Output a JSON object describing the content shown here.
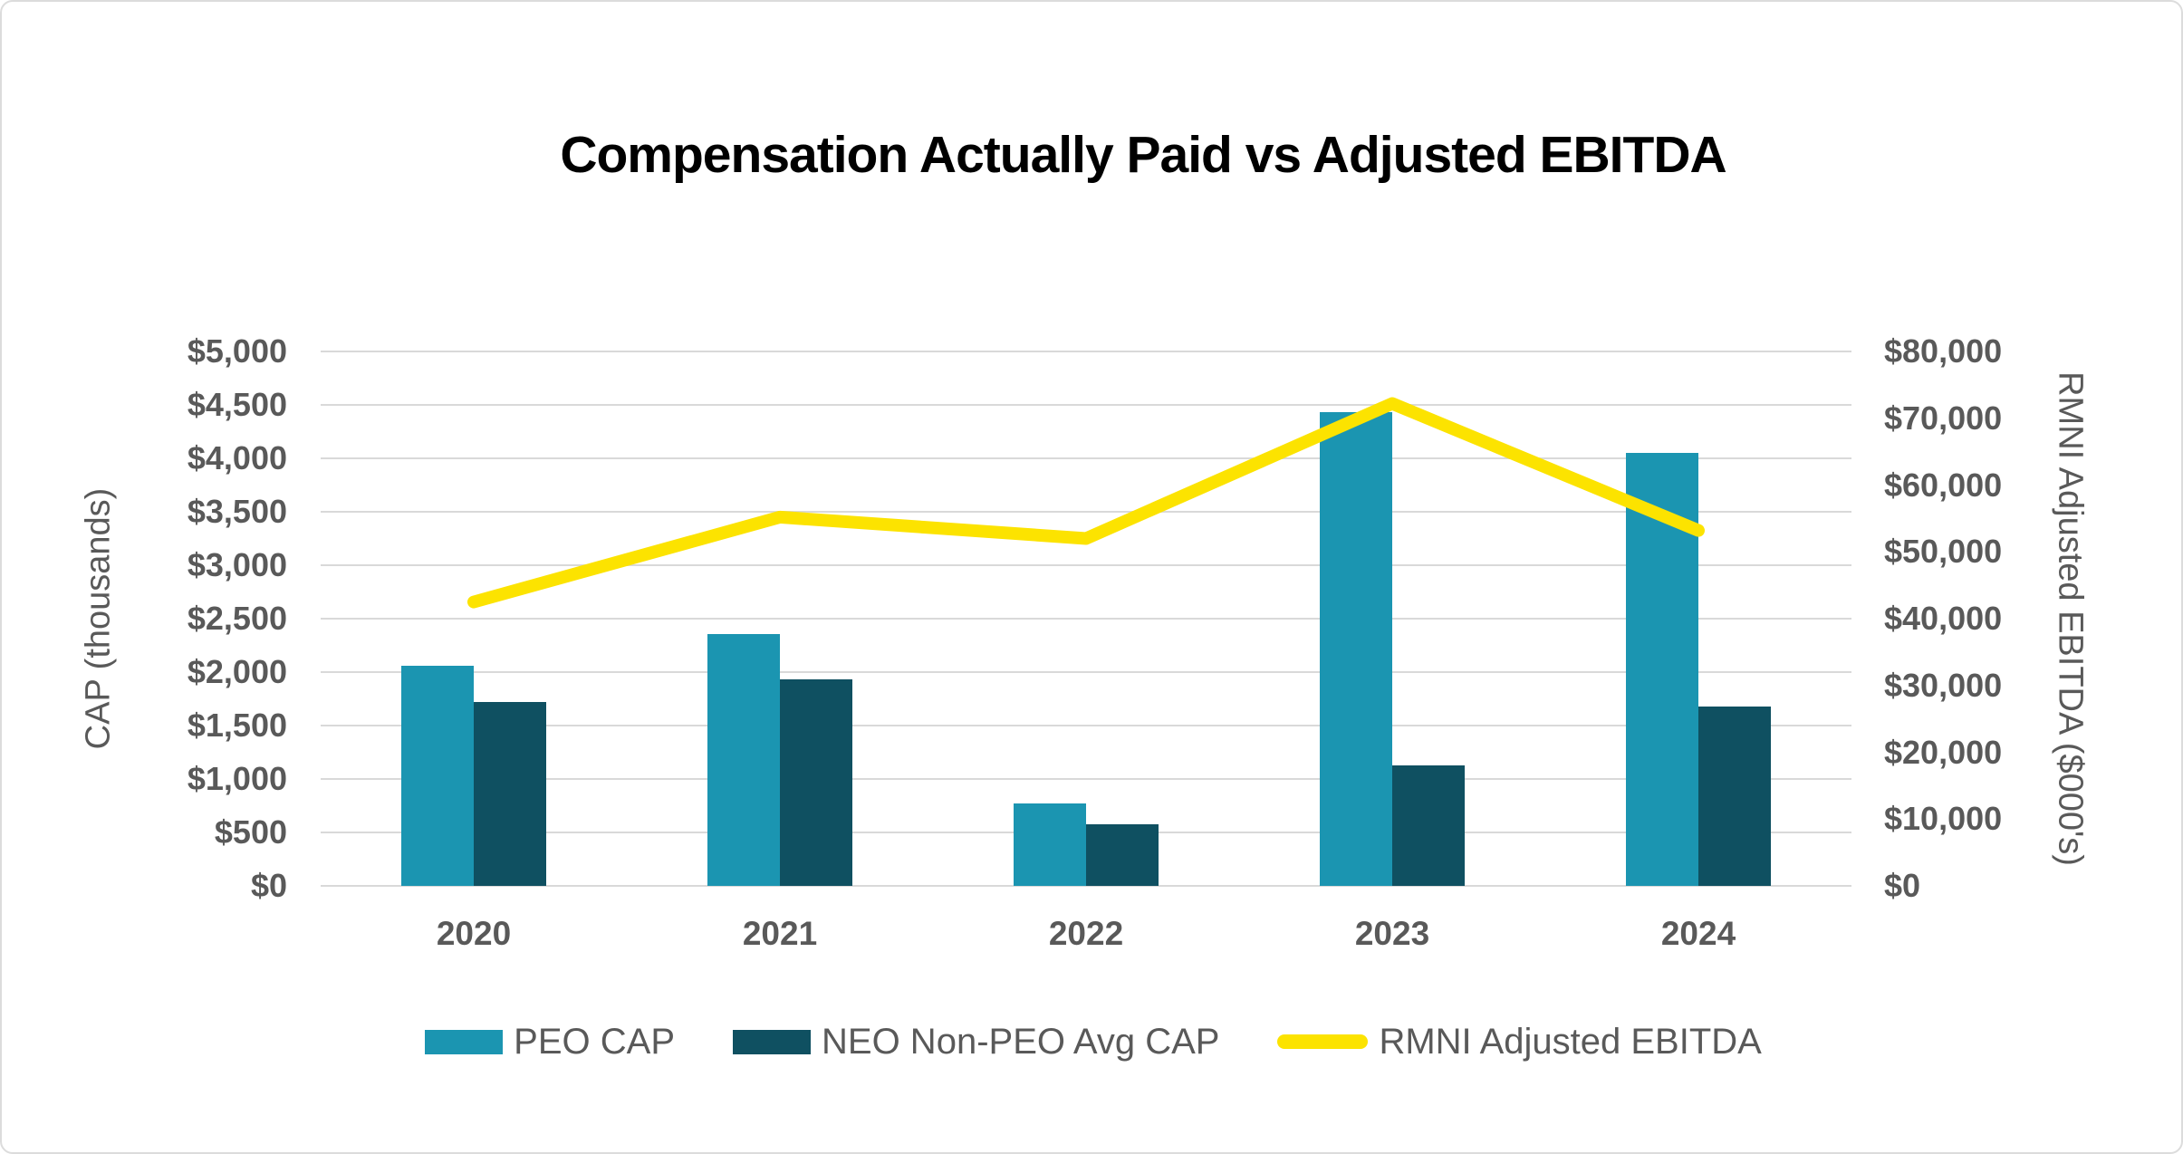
{
  "title": "Compensation Actually Paid vs Adjusted EBITDA",
  "colors": {
    "peo_bar": "#1b95b1",
    "neo_bar": "#0f5061",
    "ebitda_line": "#fce300",
    "gridline": "#d9d9d9",
    "axis_text": "#595959",
    "title_text": "#000000"
  },
  "chart_data": {
    "type": "bar",
    "subtype": "grouped-bars-with-line-overlay",
    "title": "Compensation Actually Paid vs Adjusted EBITDA",
    "categories": [
      "2020",
      "2021",
      "2022",
      "2023",
      "2024"
    ],
    "series": [
      {
        "name": "PEO CAP",
        "type": "bar",
        "axis": "left",
        "color": "#1b95b1",
        "values": [
          2060,
          2355,
          770,
          4430,
          4050
        ]
      },
      {
        "name": "NEO Non-PEO Avg CAP",
        "type": "bar",
        "axis": "left",
        "color": "#0f5061",
        "values": [
          1720,
          1930,
          575,
          1125,
          1680
        ]
      },
      {
        "name": "RMNI Adjusted EBITDA",
        "type": "line",
        "axis": "right",
        "color": "#fce300",
        "values": [
          42500,
          55200,
          52000,
          72200,
          53200
        ]
      }
    ],
    "left_axis": {
      "title": "CAP (thousands)",
      "min": 0,
      "max": 5000,
      "step": 500,
      "tick_labels": [
        "$0",
        "$500",
        "$1,000",
        "$1,500",
        "$2,000",
        "$2,500",
        "$3,000",
        "$3,500",
        "$4,000",
        "$4,500",
        "$5,000"
      ]
    },
    "right_axis": {
      "title": "RMNI Adjusted EBITDA ($000's)",
      "min": 0,
      "max": 80000,
      "step": 10000,
      "tick_labels": [
        "$0",
        "$10,000",
        "$20,000",
        "$30,000",
        "$40,000",
        "$50,000",
        "$60,000",
        "$70,000",
        "$80,000"
      ]
    },
    "legend_position": "bottom",
    "grid": "horizontal"
  }
}
